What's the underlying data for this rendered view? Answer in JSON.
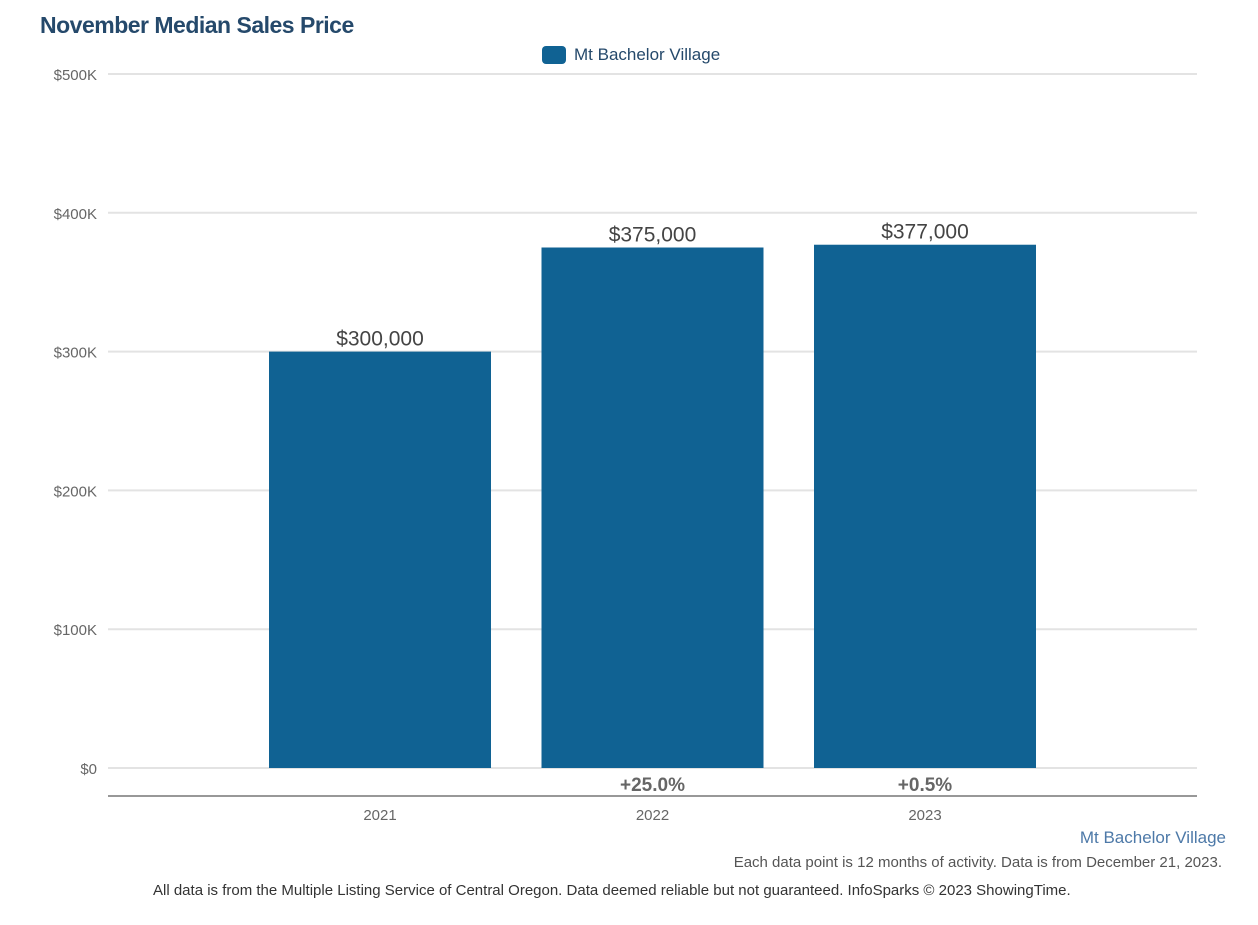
{
  "chart_data": {
    "type": "bar",
    "title": "November Median Sales Price",
    "categories": [
      "2021",
      "2022",
      "2023"
    ],
    "series": [
      {
        "name": "Mt Bachelor Village",
        "values": [
          300000,
          375000,
          377000
        ],
        "color": "#106293"
      }
    ],
    "data_labels": [
      "$300,000",
      "$375,000",
      "$377,000"
    ],
    "change_labels": [
      "",
      "+25.0%",
      "+0.5%"
    ],
    "ylim": [
      0,
      500000
    ],
    "yticks": [
      0,
      100000,
      200000,
      300000,
      400000,
      500000
    ],
    "ytick_labels": [
      "$0",
      "$100K",
      "$200K",
      "$300K",
      "$400K",
      "$500K"
    ],
    "grid": true,
    "legend": "top-center"
  },
  "footer": {
    "region": "Mt Bachelor Village",
    "note": "Each data point is 12 months of activity. Data is from December 21, 2023.",
    "source": "All data is from the Multiple Listing Service of Central Oregon. Data deemed reliable but not guaranteed. InfoSparks © 2023 ShowingTime."
  }
}
